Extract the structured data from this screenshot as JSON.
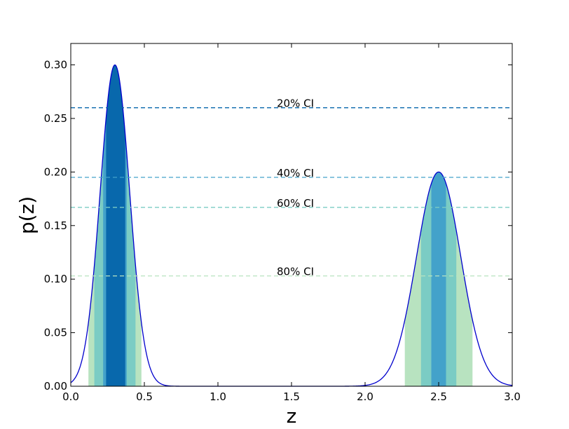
{
  "chart_data": {
    "type": "line",
    "title": "",
    "xlabel": "z",
    "ylabel": "p(z)",
    "xlim": [
      0.0,
      3.0
    ],
    "ylim": [
      0.0,
      0.32
    ],
    "grid": false,
    "x_ticks": [
      0.0,
      0.5,
      1.0,
      1.5,
      2.0,
      2.5,
      3.0
    ],
    "x_tick_labels": [
      "0.0",
      "0.5",
      "1.0",
      "1.5",
      "2.0",
      "2.5",
      "3.0"
    ],
    "y_ticks": [
      0.0,
      0.05,
      0.1,
      0.15,
      0.2,
      0.25,
      0.3
    ],
    "y_tick_labels": [
      "0.00",
      "0.05",
      "0.10",
      "0.15",
      "0.20",
      "0.25",
      "0.30"
    ],
    "curve": {
      "color": "#0000cc",
      "components": [
        {
          "mean": 0.3,
          "sigma": 0.1,
          "peak": 0.3
        },
        {
          "mean": 2.5,
          "sigma": 0.15,
          "peak": 0.2
        }
      ]
    },
    "credible_intervals": [
      {
        "label": "80% CI",
        "level": 0.103,
        "color": "#b8e3c0",
        "line_color": "#b8e3c0",
        "x_ranges": [
          [
            0.12,
            0.48
          ],
          [
            2.27,
            2.73
          ]
        ]
      },
      {
        "label": "60% CI",
        "level": 0.167,
        "color": "#7bccc4",
        "line_color": "#7bccc4",
        "x_ranges": [
          [
            0.16,
            0.44
          ],
          [
            2.38,
            2.62
          ]
        ]
      },
      {
        "label": "40% CI",
        "level": 0.195,
        "color": "#43a2ca",
        "line_color": "#43a2ca",
        "x_ranges": [
          [
            0.22,
            0.38
          ],
          [
            2.45,
            2.55
          ]
        ]
      },
      {
        "label": "20% CI",
        "level": 0.26,
        "color": "#0868ac",
        "line_color": "#0868ac",
        "x_ranges": [
          [
            0.24,
            0.37
          ]
        ]
      }
    ]
  }
}
